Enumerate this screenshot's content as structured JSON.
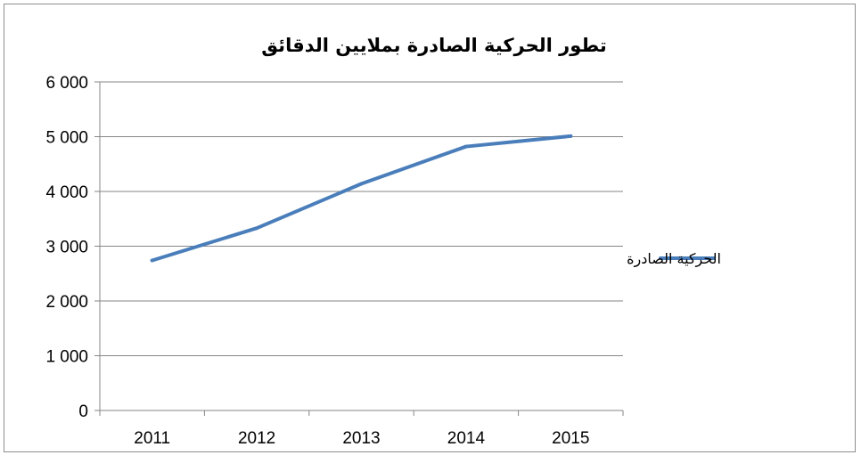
{
  "chart_data": {
    "type": "line",
    "title": "تطور الحركية الصادرة بملايين الدقائق",
    "xlabel": "",
    "ylabel": "",
    "categories": [
      "2011",
      "2012",
      "2013",
      "2014",
      "2015"
    ],
    "series": [
      {
        "name": "الحركية الصادرة",
        "values": [
          2740,
          3330,
          4140,
          4820,
          5010
        ],
        "color": "#4a7ebb"
      }
    ],
    "ylim": [
      0,
      6000
    ],
    "y_ticks": [
      0,
      1000,
      2000,
      3000,
      4000,
      5000,
      6000
    ],
    "y_tick_labels": [
      "0",
      "1 000",
      "2 000",
      "3 000",
      "4 000",
      "5 000",
      "6 000"
    ],
    "grid": true,
    "legend_position": "right"
  }
}
